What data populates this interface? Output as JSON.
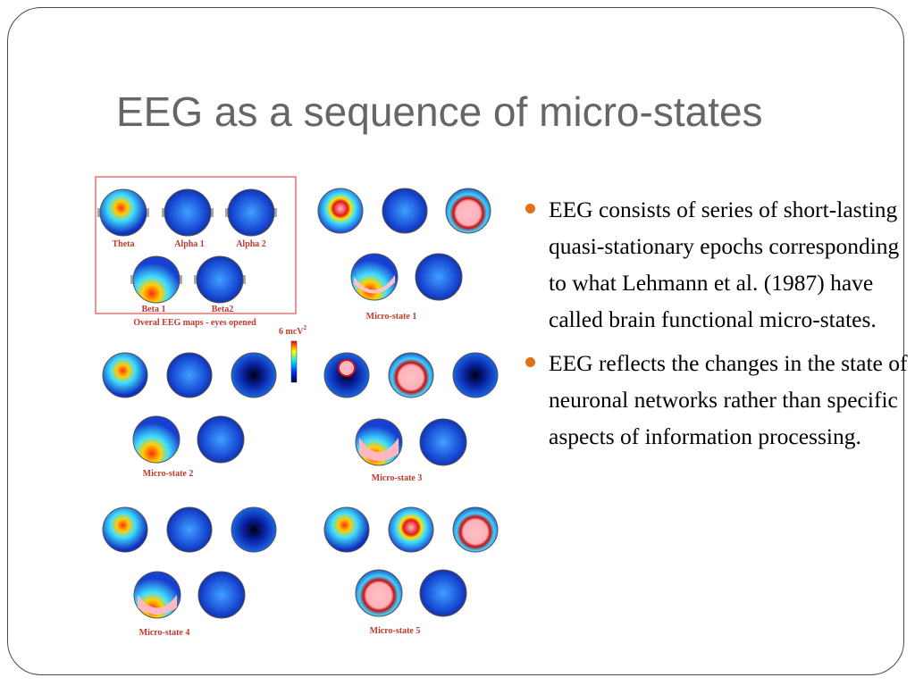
{
  "slide": {
    "title": "EEG as a sequence of micro-states",
    "bullets": [
      "EEG consists of series of short-lasting quasi-stationary epochs corresponding to what Lehmann et al. (1987) have called brain functional micro-states.",
      "EEG reflects the changes in the state of neuronal networks rather than specific aspects of information processing."
    ],
    "accent_color": "#e0701a"
  },
  "figure": {
    "map_labels": {
      "theta": "Theta",
      "alpha1": "Alpha 1",
      "alpha2": "Alpha 2",
      "beta1": "Beta 1",
      "beta2": "Beta2"
    },
    "box_caption": "Overal EEG maps - eyes opened",
    "scale_label": "6 mcV",
    "scale_exp": "2",
    "micro_states": [
      "Micro-state 1",
      "Micro-state 2",
      "Micro-state 3",
      "Micro-state 4",
      "Micro-state 5"
    ]
  }
}
